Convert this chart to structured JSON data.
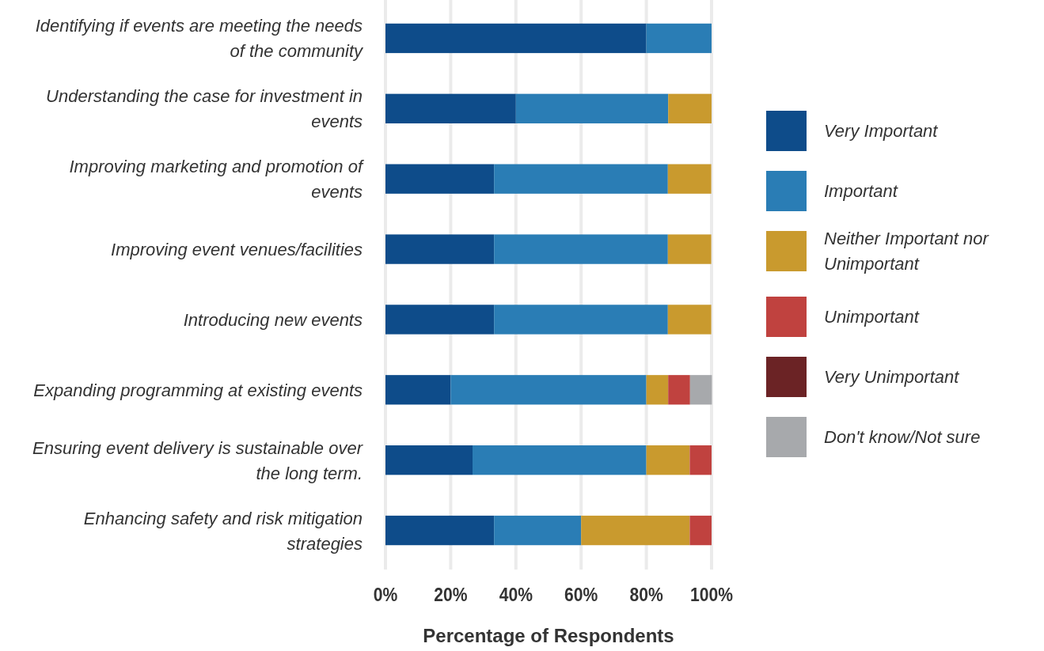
{
  "chart_data": {
    "type": "bar",
    "orientation": "horizontal",
    "stacked": true,
    "xlabel": "Percentage of Respondents",
    "categories": [
      "Identifying if events are meeting the needs of the community",
      "Understanding the case for investment in events",
      "Improving marketing and promotion of events",
      "Improving event venues/facilities",
      "Introducing new events",
      "Expanding programming at existing events",
      "Ensuring event delivery is sustainable over the long term.",
      "Enhancing safety and risk mitigation strategies"
    ],
    "series": [
      {
        "name": "Very Important",
        "color": "#0e4c8a",
        "values": [
          80,
          40,
          33.3,
          33.3,
          33.3,
          20,
          26.7,
          33.3
        ]
      },
      {
        "name": "Important",
        "color": "#2a7db5",
        "values": [
          20,
          46.7,
          53.3,
          53.3,
          53.3,
          60,
          53.3,
          26.7
        ]
      },
      {
        "name": "Neither Important nor Unimportant",
        "color": "#c99a2e",
        "values": [
          0,
          13.3,
          13.3,
          13.3,
          13.3,
          6.7,
          13.3,
          33.3
        ]
      },
      {
        "name": "Unimportant",
        "color": "#c0423f",
        "values": [
          0,
          0,
          0,
          0,
          0,
          6.7,
          6.7,
          6.7
        ]
      },
      {
        "name": "Very Unimportant",
        "color": "#6b2325",
        "values": [
          0,
          0,
          0,
          0,
          0,
          0,
          0,
          0
        ]
      },
      {
        "name": "Don't know/Not sure",
        "color": "#a7a9ac",
        "values": [
          0,
          0,
          0,
          0,
          0,
          6.7,
          0,
          0
        ]
      }
    ],
    "xlim": [
      0,
      100
    ],
    "xticks": [
      {
        "value": 0,
        "label": "0%"
      },
      {
        "value": 20,
        "label": "20%"
      },
      {
        "value": 40,
        "label": "40%"
      },
      {
        "value": 60,
        "label": "60%"
      },
      {
        "value": 80,
        "label": "80%"
      },
      {
        "value": 100,
        "label": "100%"
      }
    ],
    "grid": "x",
    "legend": "right"
  }
}
